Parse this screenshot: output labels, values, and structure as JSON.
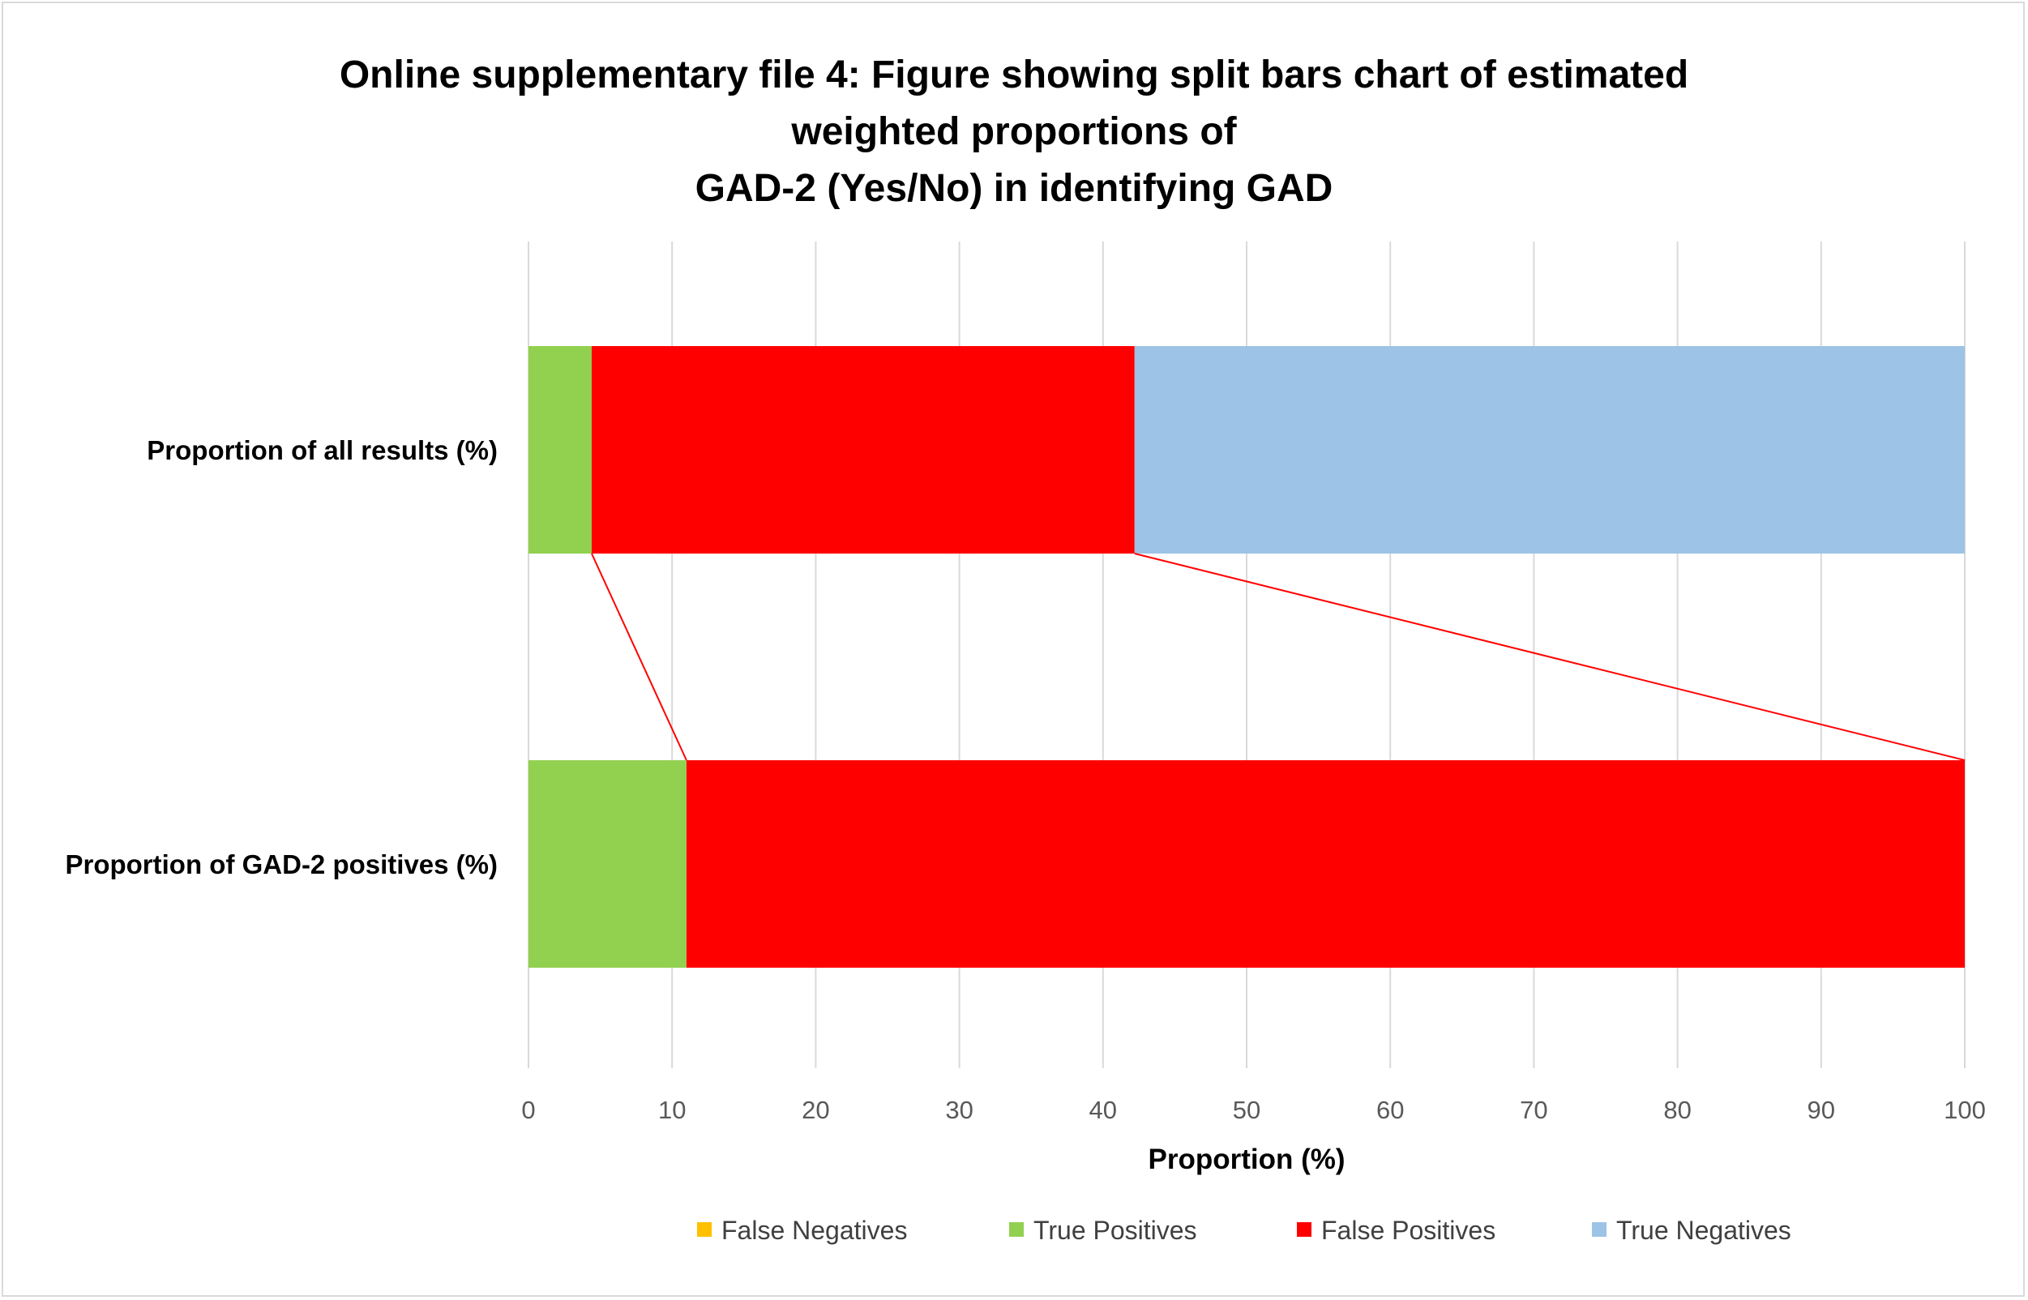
{
  "chart_data": {
    "type": "bar",
    "orientation": "horizontal",
    "stacked": true,
    "title_lines": [
      "Online supplementary file 4: Figure showing split bars chart of estimated",
      "weighted proportions of",
      "GAD-2 (Yes/No) in identifying GAD"
    ],
    "xlabel": "Proportion  (%)",
    "ylabel": "",
    "xlim": [
      0,
      100
    ],
    "xticks": [
      0,
      10,
      20,
      30,
      40,
      50,
      60,
      70,
      80,
      90,
      100
    ],
    "grid": true,
    "legend_position": "bottom",
    "categories": [
      "Proportion of all results (%)",
      "Proportion of GAD-2 positives (%)"
    ],
    "series": [
      {
        "name": "False Negatives",
        "color": "#ffc000",
        "values": [
          0,
          0
        ]
      },
      {
        "name": "True Positives",
        "color": "#92d050",
        "values": [
          4.4,
          11
        ]
      },
      {
        "name": "False Positives",
        "color": "#ff0000",
        "values": [
          37.8,
          89
        ]
      },
      {
        "name": "True Negatives",
        "color": "#9dc3e6",
        "values": [
          57.8,
          0
        ]
      }
    ],
    "connector_lines": {
      "color": "#ff0000",
      "links": [
        {
          "from_category": 0,
          "from_value": 4.4,
          "to_category": 1,
          "to_value": 11
        },
        {
          "from_category": 0,
          "from_value": 42.2,
          "to_category": 1,
          "to_value": 100
        }
      ]
    }
  }
}
